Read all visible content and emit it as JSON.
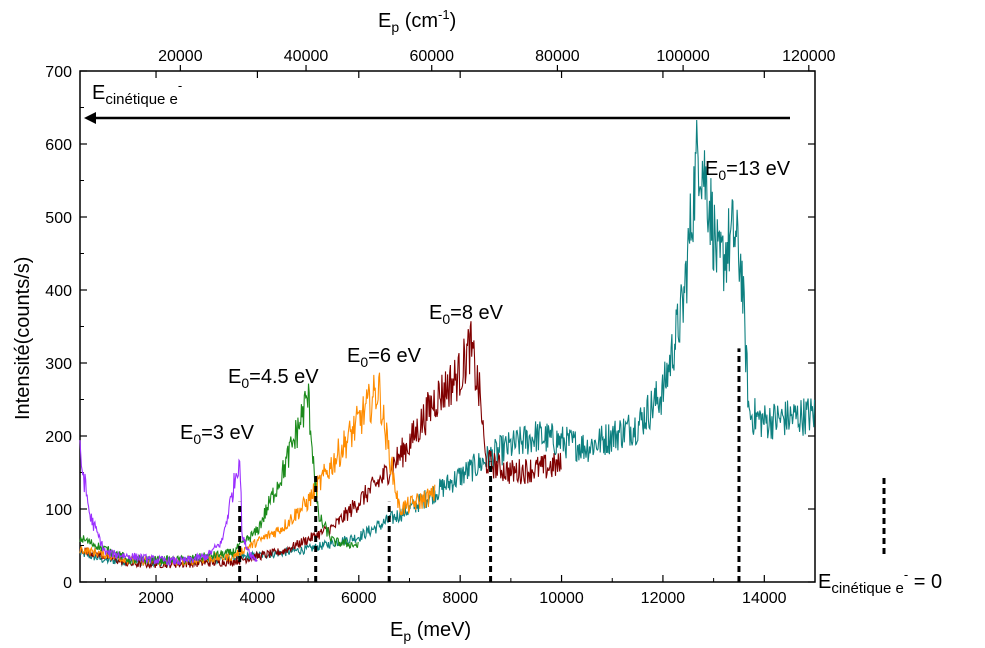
{
  "chart_data": {
    "type": "line",
    "xlabel": {
      "main": "E",
      "sub": "p",
      "unit": " (meV)"
    },
    "xlabel_top": {
      "main": "E",
      "sub": "p",
      "unit_pre": " (cm",
      "sup": "-1",
      "unit_post": ")"
    },
    "ylabel": "Intensité(counts/s)",
    "xlim": [
      500,
      15000
    ],
    "ylim": [
      0,
      700
    ],
    "x_ticks": [
      2000,
      4000,
      6000,
      8000,
      10000,
      12000,
      14000
    ],
    "x_tick_labels": [
      "2000",
      "4000",
      "6000",
      "8000",
      "10000",
      "12000",
      "14000"
    ],
    "y_ticks": [
      0,
      100,
      200,
      300,
      400,
      500,
      600,
      700
    ],
    "y_tick_labels": [
      "0",
      "100",
      "200",
      "300",
      "400",
      "500",
      "600",
      "700"
    ],
    "top_ticks_cm": [
      20000,
      40000,
      60000,
      80000,
      100000,
      120000
    ],
    "top_tick_labels": [
      "20000",
      "40000",
      "60000",
      "80000",
      "100000",
      "120000"
    ],
    "arrow_label": {
      "main": "E",
      "sub": "cinétique e",
      "sup": "-"
    },
    "zero_label": {
      "main": "E",
      "sub": "cinétique e",
      "sup": "-",
      "post": " = 0"
    },
    "series": [
      {
        "name": "E0=13 eV",
        "label_main": "E",
        "label_sub": "0",
        "label_post": "=13 eV",
        "color": "#0e8080",
        "points": [
          [
            500,
            40
          ],
          [
            1000,
            30
          ],
          [
            2000,
            27
          ],
          [
            3000,
            30
          ],
          [
            4000,
            36
          ],
          [
            5000,
            45
          ],
          [
            6000,
            62
          ],
          [
            7000,
            100
          ],
          [
            8000,
            145
          ],
          [
            8800,
            180
          ],
          [
            9500,
            200
          ],
          [
            10500,
            185
          ],
          [
            11500,
            215
          ],
          [
            12000,
            260
          ],
          [
            12400,
            380
          ],
          [
            12700,
            600
          ],
          [
            12900,
            530
          ],
          [
            13100,
            430
          ],
          [
            13400,
            480
          ],
          [
            13550,
            430
          ],
          [
            13700,
            230
          ],
          [
            14000,
            220
          ],
          [
            14500,
            225
          ],
          [
            15000,
            230
          ]
        ],
        "cutoff_x": 13500,
        "cutoff_top": 320
      },
      {
        "name": "E0=8 eV",
        "label_main": "E",
        "label_sub": "0",
        "label_post": "=8 eV",
        "color": "#800000",
        "points": [
          [
            500,
            45
          ],
          [
            1500,
            25
          ],
          [
            2500,
            25
          ],
          [
            3500,
            28
          ],
          [
            4500,
            42
          ],
          [
            5500,
            75
          ],
          [
            6500,
            145
          ],
          [
            7000,
            190
          ],
          [
            7500,
            250
          ],
          [
            8000,
            285
          ],
          [
            8200,
            325
          ],
          [
            8400,
            250
          ],
          [
            8500,
            165
          ],
          [
            9000,
            150
          ],
          [
            9500,
            155
          ],
          [
            10000,
            160
          ]
        ],
        "cutoff_x": 8600,
        "cutoff_top": 165
      },
      {
        "name": "E0=6 eV",
        "label_main": "E",
        "label_sub": "0",
        "label_post": "=6 eV",
        "color": "#ff8c00",
        "points": [
          [
            500,
            45
          ],
          [
            1500,
            30
          ],
          [
            2500,
            28
          ],
          [
            3500,
            35
          ],
          [
            4500,
            75
          ],
          [
            5000,
            110
          ],
          [
            5500,
            165
          ],
          [
            6000,
            220
          ],
          [
            6300,
            255
          ],
          [
            6400,
            265
          ],
          [
            6500,
            215
          ],
          [
            6800,
            100
          ],
          [
            7000,
            105
          ],
          [
            7500,
            120
          ]
        ],
        "cutoff_x": 6600,
        "cutoff_top": 110
      },
      {
        "name": "E0=4.5 eV",
        "label_main": "E",
        "label_sub": "0",
        "label_post": "=4.5 eV",
        "color": "#1a8a1a",
        "points": [
          [
            500,
            60
          ],
          [
            1500,
            30
          ],
          [
            2500,
            30
          ],
          [
            3500,
            40
          ],
          [
            4000,
            70
          ],
          [
            4500,
            150
          ],
          [
            4800,
            210
          ],
          [
            5000,
            255
          ],
          [
            5200,
            90
          ],
          [
            5500,
            55
          ],
          [
            6000,
            50
          ]
        ],
        "cutoff_x": 5150,
        "cutoff_top": 150
      },
      {
        "name": "E0=3 eV",
        "label_main": "E",
        "label_sub": "0",
        "label_post": "=3 eV",
        "color": "#9b30ff",
        "points": [
          [
            500,
            175
          ],
          [
            700,
            90
          ],
          [
            1000,
            40
          ],
          [
            1500,
            35
          ],
          [
            2000,
            30
          ],
          [
            2500,
            28
          ],
          [
            3000,
            35
          ],
          [
            3300,
            55
          ],
          [
            3500,
            120
          ],
          [
            3650,
            175
          ],
          [
            3700,
            60
          ],
          [
            3900,
            35
          ],
          [
            4000,
            30
          ]
        ],
        "cutoff_x": 3650,
        "cutoff_top": 110
      }
    ]
  }
}
